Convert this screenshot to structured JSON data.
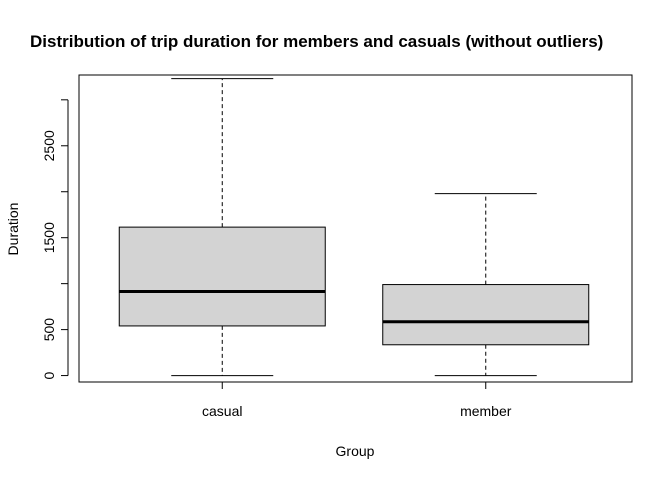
{
  "chart_data": {
    "type": "box",
    "title": "Distribution of trip duration for members and casuals (without outliers)",
    "xlabel": "Group",
    "ylabel": "Duration",
    "ylim": [
      -70,
      3270
    ],
    "yticks": [
      0,
      500,
      1500,
      2500
    ],
    "ytick_labels": [
      "0",
      "500",
      "1500",
      "2500"
    ],
    "minor_yticks": [
      1000,
      2000,
      3000
    ],
    "grid": false,
    "box_color": "#d3d3d3",
    "categories": [
      "casual",
      "member"
    ],
    "series": [
      {
        "group": "casual",
        "min": 0,
        "q1": 540,
        "median": 915,
        "q3": 1615,
        "max": 3230
      },
      {
        "group": "member",
        "min": 0,
        "q1": 335,
        "median": 585,
        "q3": 990,
        "max": 1980
      }
    ]
  }
}
